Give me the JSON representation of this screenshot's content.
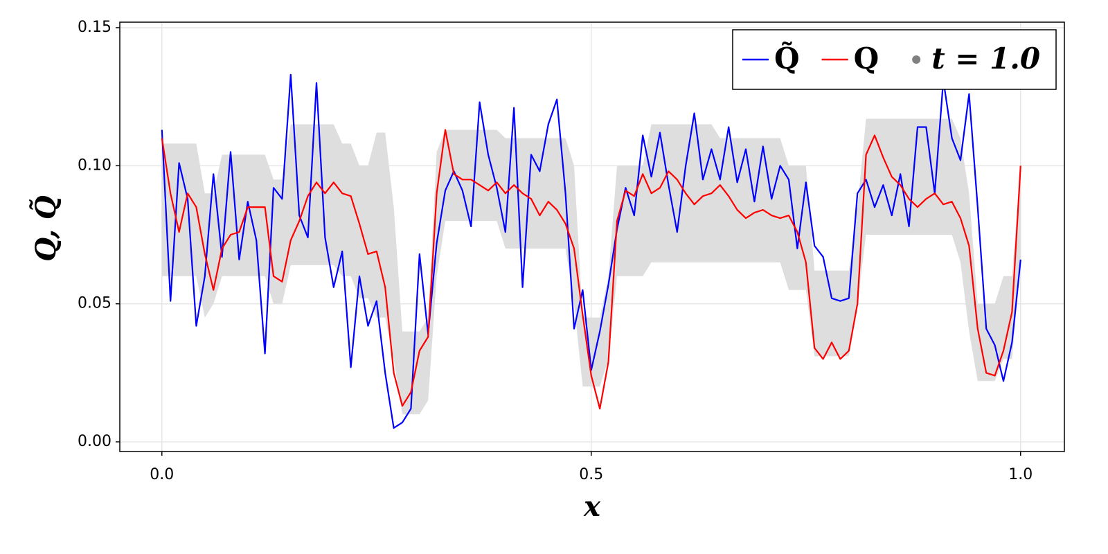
{
  "chart_data": {
    "type": "line",
    "x_label": "x",
    "y_label": "Q, Q̃",
    "x": [
      0,
      0.01,
      0.02,
      0.03,
      0.04,
      0.05,
      0.06,
      0.07,
      0.08,
      0.09,
      0.1,
      0.11,
      0.12,
      0.13,
      0.14,
      0.15,
      0.16,
      0.17,
      0.18,
      0.19,
      0.2,
      0.21,
      0.22,
      0.23,
      0.24,
      0.25,
      0.26,
      0.27,
      0.28,
      0.29,
      0.3,
      0.31,
      0.32,
      0.33,
      0.34,
      0.35,
      0.36,
      0.37,
      0.38,
      0.39,
      0.4,
      0.41,
      0.42,
      0.43,
      0.44,
      0.45,
      0.46,
      0.47,
      0.48,
      0.49,
      0.5,
      0.51,
      0.52,
      0.53,
      0.54,
      0.55,
      0.56,
      0.57,
      0.58,
      0.59,
      0.6,
      0.61,
      0.62,
      0.63,
      0.64,
      0.65,
      0.66,
      0.67,
      0.68,
      0.69,
      0.7,
      0.71,
      0.72,
      0.73,
      0.74,
      0.75,
      0.76,
      0.77,
      0.78,
      0.79,
      0.8,
      0.81,
      0.82,
      0.83,
      0.84,
      0.85,
      0.86,
      0.87,
      0.88,
      0.89,
      0.9,
      0.91,
      0.92,
      0.93,
      0.94,
      0.95,
      0.96,
      0.97,
      0.98,
      0.99,
      1
    ],
    "band": {
      "color": "#dedede",
      "lower": [
        0.06,
        0.06,
        0.06,
        0.06,
        0.06,
        0.045,
        0.05,
        0.06,
        0.06,
        0.06,
        0.06,
        0.06,
        0.06,
        0.05,
        0.05,
        0.064,
        0.064,
        0.064,
        0.064,
        0.064,
        0.064,
        0.06,
        0.06,
        0.052,
        0.052,
        0.045,
        0.045,
        0.03,
        0.01,
        0.01,
        0.01,
        0.015,
        0.06,
        0.08,
        0.08,
        0.08,
        0.08,
        0.08,
        0.08,
        0.08,
        0.07,
        0.07,
        0.07,
        0.07,
        0.07,
        0.07,
        0.07,
        0.07,
        0.05,
        0.02,
        0.02,
        0.02,
        0.03,
        0.06,
        0.06,
        0.06,
        0.06,
        0.065,
        0.065,
        0.065,
        0.065,
        0.065,
        0.065,
        0.065,
        0.065,
        0.065,
        0.065,
        0.065,
        0.065,
        0.065,
        0.065,
        0.065,
        0.065,
        0.055,
        0.055,
        0.055,
        0.031,
        0.031,
        0.031,
        0.031,
        0.031,
        0.05,
        0.075,
        0.075,
        0.075,
        0.075,
        0.075,
        0.075,
        0.075,
        0.075,
        0.075,
        0.075,
        0.075,
        0.065,
        0.04,
        0.022,
        0.022,
        0.022,
        0.03,
        0.03,
        0.065
      ],
      "upper": [
        0.108,
        0.108,
        0.108,
        0.108,
        0.108,
        0.09,
        0.09,
        0.104,
        0.104,
        0.104,
        0.104,
        0.104,
        0.104,
        0.095,
        0.095,
        0.115,
        0.115,
        0.115,
        0.115,
        0.115,
        0.115,
        0.108,
        0.108,
        0.1,
        0.1,
        0.112,
        0.112,
        0.085,
        0.04,
        0.04,
        0.04,
        0.045,
        0.105,
        0.113,
        0.113,
        0.113,
        0.113,
        0.113,
        0.113,
        0.113,
        0.11,
        0.11,
        0.11,
        0.11,
        0.11,
        0.11,
        0.11,
        0.11,
        0.1,
        0.045,
        0.045,
        0.045,
        0.06,
        0.1,
        0.1,
        0.1,
        0.1,
        0.115,
        0.115,
        0.115,
        0.115,
        0.115,
        0.115,
        0.115,
        0.115,
        0.11,
        0.11,
        0.11,
        0.11,
        0.11,
        0.11,
        0.11,
        0.11,
        0.1,
        0.1,
        0.1,
        0.062,
        0.062,
        0.062,
        0.062,
        0.062,
        0.085,
        0.117,
        0.117,
        0.117,
        0.117,
        0.117,
        0.117,
        0.117,
        0.117,
        0.117,
        0.117,
        0.117,
        0.11,
        0.09,
        0.05,
        0.05,
        0.05,
        0.06,
        0.06,
        0.1
      ]
    },
    "series": [
      {
        "name": "Q̃",
        "color": "#0000ff",
        "values": [
          0.113,
          0.051,
          0.101,
          0.088,
          0.042,
          0.06,
          0.097,
          0.067,
          0.105,
          0.066,
          0.087,
          0.073,
          0.032,
          0.092,
          0.088,
          0.133,
          0.082,
          0.074,
          0.13,
          0.074,
          0.056,
          0.069,
          0.027,
          0.06,
          0.042,
          0.051,
          0.025,
          0.005,
          0.007,
          0.012,
          0.068,
          0.039,
          0.072,
          0.091,
          0.098,
          0.091,
          0.078,
          0.123,
          0.104,
          0.092,
          0.076,
          0.121,
          0.056,
          0.104,
          0.098,
          0.115,
          0.124,
          0.09,
          0.041,
          0.055,
          0.026,
          0.04,
          0.057,
          0.077,
          0.092,
          0.082,
          0.111,
          0.096,
          0.112,
          0.093,
          0.076,
          0.1,
          0.119,
          0.095,
          0.106,
          0.095,
          0.114,
          0.094,
          0.106,
          0.087,
          0.107,
          0.088,
          0.1,
          0.095,
          0.07,
          0.094,
          0.071,
          0.067,
          0.052,
          0.051,
          0.052,
          0.09,
          0.095,
          0.085,
          0.093,
          0.082,
          0.097,
          0.078,
          0.114,
          0.114,
          0.09,
          0.131,
          0.11,
          0.102,
          0.126,
          0.085,
          0.041,
          0.035,
          0.022,
          0.036,
          0.066
        ]
      },
      {
        "name": "Q",
        "color": "#ff0000",
        "values": [
          0.11,
          0.09,
          0.076,
          0.09,
          0.085,
          0.068,
          0.055,
          0.07,
          0.075,
          0.076,
          0.085,
          0.085,
          0.085,
          0.06,
          0.058,
          0.073,
          0.08,
          0.089,
          0.094,
          0.09,
          0.094,
          0.09,
          0.089,
          0.079,
          0.068,
          0.069,
          0.056,
          0.025,
          0.013,
          0.018,
          0.033,
          0.038,
          0.09,
          0.113,
          0.097,
          0.095,
          0.095,
          0.093,
          0.091,
          0.094,
          0.09,
          0.093,
          0.09,
          0.088,
          0.082,
          0.087,
          0.084,
          0.079,
          0.07,
          0.046,
          0.024,
          0.012,
          0.029,
          0.08,
          0.091,
          0.089,
          0.097,
          0.09,
          0.092,
          0.098,
          0.095,
          0.09,
          0.086,
          0.089,
          0.09,
          0.093,
          0.089,
          0.084,
          0.081,
          0.083,
          0.084,
          0.082,
          0.081,
          0.082,
          0.076,
          0.065,
          0.034,
          0.03,
          0.036,
          0.03,
          0.033,
          0.05,
          0.104,
          0.111,
          0.103,
          0.096,
          0.093,
          0.088,
          0.085,
          0.088,
          0.09,
          0.086,
          0.087,
          0.081,
          0.071,
          0.041,
          0.025,
          0.024,
          0.033,
          0.047,
          0.1
        ]
      }
    ],
    "legend_note": "t = 1.0",
    "xlim": [
      -0.049,
      1.051
    ],
    "ylim": [
      -0.0035,
      0.152
    ],
    "xticks": [
      {
        "value": 0,
        "label": "0.0"
      },
      {
        "value": 0.5,
        "label": "0.5"
      },
      {
        "value": 1,
        "label": "1.0"
      }
    ],
    "yticks": [
      {
        "value": 0,
        "label": "0.00"
      },
      {
        "value": 0.05,
        "label": "0.05"
      },
      {
        "value": 0.1,
        "label": "0.10"
      },
      {
        "value": 0.15,
        "label": "0.15"
      }
    ],
    "grid": true,
    "legend": "top-right"
  }
}
